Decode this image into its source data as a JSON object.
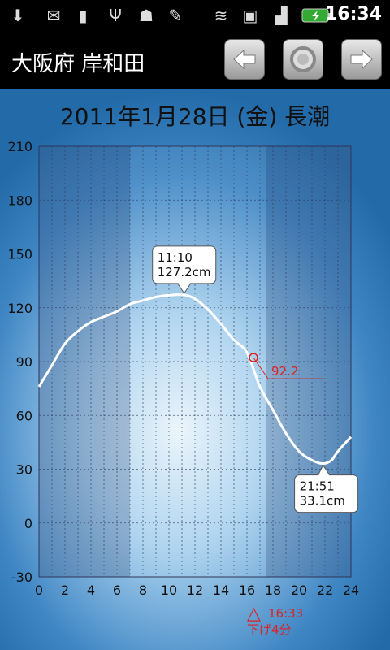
{
  "status_bar": {
    "icons": [
      "download-icon",
      "gmail-icon",
      "sd-card-icon",
      "usb-icon",
      "android-debug-icon",
      "notes-icon",
      "wifi-icon",
      "sim-icon",
      "signal-icon",
      "battery-charging-icon"
    ],
    "time": "16:34"
  },
  "header": {
    "place": "大阪府 岸和田",
    "prev_icon": "left-arrow-icon",
    "home_icon": "circle-icon",
    "next_icon": "right-arrow-icon"
  },
  "main": {
    "date_title": "2011年1月28日 (金) 長潮"
  },
  "chart_data": {
    "type": "line",
    "xlim": [
      0,
      24
    ],
    "ylim": [
      -30,
      210
    ],
    "x_ticks": [
      "0",
      "2",
      "4",
      "6",
      "8",
      "10",
      "12",
      "14",
      "16",
      "18",
      "20",
      "22",
      "24"
    ],
    "y_ticks": [
      "210",
      "180",
      "150",
      "120",
      "90",
      "60",
      "30",
      "0",
      "-30"
    ],
    "grid": true,
    "night_shading": [
      [
        0,
        7
      ],
      [
        17.5,
        24
      ]
    ],
    "series": [
      {
        "x": [
          0,
          1,
          2,
          3,
          4,
          5,
          6,
          7,
          8,
          9,
          10,
          11.17,
          12,
          13,
          14,
          15,
          16,
          17,
          18,
          19,
          20,
          21,
          21.85,
          22.5,
          23,
          24
        ],
        "y": [
          76,
          88,
          100,
          107,
          112,
          115,
          118,
          122,
          124,
          126,
          127,
          127.2,
          125,
          119,
          111,
          102,
          95,
          76,
          63,
          50,
          40,
          35,
          33.1,
          35,
          40,
          48
        ]
      }
    ],
    "callouts": [
      {
        "time": "11:10",
        "level": "127.2cm",
        "x": 11.17,
        "y": 127.2,
        "position": "above"
      },
      {
        "time": "21:51",
        "level": "33.1cm",
        "x": 21.85,
        "y": 33.1,
        "position": "below"
      }
    ],
    "current": {
      "x": 16.5,
      "y": 92.2,
      "label": "92.2",
      "color": "#e02020"
    },
    "now_marker": {
      "symbol": "△",
      "time": "16:33",
      "text": "下げ4分",
      "color": "#e02020"
    }
  }
}
